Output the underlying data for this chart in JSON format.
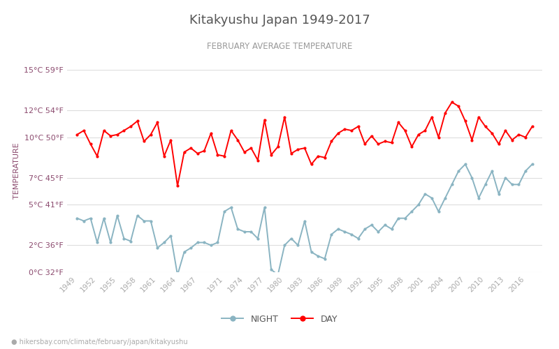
{
  "title": "Kitakyushu Japan 1949-2017",
  "subtitle": "FEBRUARY AVERAGE TEMPERATURE",
  "ylabel": "TEMPERATURE",
  "footer": "hikersbay.com/climate/february/japan/kitakyushu",
  "years": [
    1949,
    1950,
    1951,
    1952,
    1953,
    1954,
    1955,
    1956,
    1957,
    1958,
    1959,
    1960,
    1961,
    1962,
    1963,
    1964,
    1965,
    1966,
    1967,
    1968,
    1969,
    1970,
    1971,
    1972,
    1973,
    1974,
    1975,
    1976,
    1977,
    1978,
    1979,
    1980,
    1981,
    1982,
    1983,
    1984,
    1985,
    1986,
    1987,
    1988,
    1989,
    1990,
    1991,
    1992,
    1993,
    1994,
    1995,
    1996,
    1997,
    1998,
    1999,
    2000,
    2001,
    2002,
    2003,
    2004,
    2005,
    2006,
    2007,
    2008,
    2009,
    2010,
    2011,
    2012,
    2013,
    2014,
    2015,
    2016,
    2017
  ],
  "day": [
    10.2,
    10.5,
    9.5,
    8.6,
    10.5,
    10.1,
    10.2,
    10.5,
    10.8,
    11.2,
    9.7,
    10.2,
    11.1,
    8.6,
    9.8,
    6.4,
    8.9,
    9.2,
    8.8,
    9.0,
    10.3,
    8.7,
    8.6,
    10.5,
    9.8,
    8.9,
    9.2,
    8.3,
    11.3,
    8.7,
    9.3,
    11.5,
    8.8,
    9.1,
    9.2,
    8.0,
    8.6,
    8.5,
    9.7,
    10.3,
    10.6,
    10.5,
    10.8,
    9.5,
    10.1,
    9.5,
    9.7,
    9.6,
    11.1,
    10.5,
    9.3,
    10.2,
    10.5,
    11.5,
    10.0,
    11.8,
    12.6,
    12.3,
    11.2,
    9.8,
    11.5,
    10.8,
    10.3,
    9.5,
    10.5,
    9.8,
    10.2,
    10.0,
    10.8
  ],
  "night": [
    4.0,
    3.8,
    4.0,
    2.2,
    4.0,
    2.2,
    4.2,
    2.5,
    2.3,
    4.2,
    3.8,
    3.8,
    1.8,
    2.2,
    2.7,
    -0.2,
    1.5,
    1.8,
    2.2,
    2.2,
    2.0,
    2.2,
    4.5,
    4.8,
    3.2,
    3.0,
    3.0,
    2.5,
    4.8,
    0.2,
    -0.2,
    2.0,
    2.5,
    2.0,
    3.8,
    1.5,
    1.2,
    1.0,
    2.8,
    3.2,
    3.0,
    2.8,
    2.5,
    3.2,
    3.5,
    3.0,
    3.5,
    3.2,
    4.0,
    4.0,
    4.5,
    5.0,
    5.8,
    5.5,
    4.5,
    5.5,
    6.5,
    7.5,
    8.0,
    7.0,
    5.5,
    6.5,
    7.5,
    5.8,
    7.0,
    6.5,
    6.5,
    7.5,
    8.0
  ],
  "day_color": "#ff0000",
  "night_color": "#8ab4c2",
  "background_color": "#ffffff",
  "grid_color": "#dddddd",
  "title_color": "#555555",
  "subtitle_color": "#999999",
  "label_color": "#8b4a6e",
  "tick_color": "#aaaaaa",
  "footer_color": "#aaaaaa",
  "ylim": [
    0,
    15
  ],
  "yticks_c": [
    0,
    2,
    5,
    7,
    10,
    12,
    15
  ],
  "yticks_f": [
    32,
    36,
    41,
    45,
    50,
    54,
    59
  ],
  "xtick_years": [
    1949,
    1952,
    1955,
    1958,
    1961,
    1964,
    1967,
    1971,
    1974,
    1977,
    1980,
    1983,
    1986,
    1989,
    1992,
    1995,
    1998,
    2001,
    2004,
    2007,
    2010,
    2013,
    2016
  ],
  "figsize": [
    8.0,
    5.0
  ],
  "dpi": 100
}
